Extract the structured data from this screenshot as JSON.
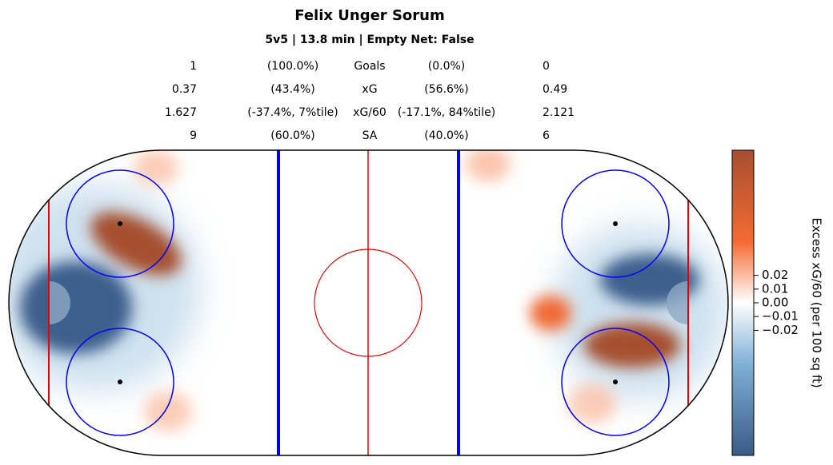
{
  "chart_data": {
    "type": "heatmap",
    "title": "Felix Unger Sorum",
    "subtitle": "5v5 | 13.8 min | Empty Net: False",
    "stats": [
      [
        "1",
        "(100.0%)",
        "Goals",
        "(0.0%)",
        "0"
      ],
      [
        "0.37",
        "(43.4%)",
        "xG",
        "(56.6%)",
        "0.49"
      ],
      [
        "1.627",
        "(-37.4%, 7%tile)",
        "xG/60",
        "(-17.1%, 84%tile)",
        "2.121"
      ],
      [
        "9",
        "(60.0%)",
        "SA",
        "(40.0%)",
        "6"
      ]
    ],
    "colorbar": {
      "label": "Excess xG/60 (per 100 sq ft)",
      "clim": [
        -0.111,
        0.111
      ],
      "ticks": [
        {
          "value": 0.02,
          "label": "0.02"
        },
        {
          "value": 0.01,
          "label": "0.01"
        },
        {
          "value": 0,
          "label": "0.00"
        },
        {
          "value": -0.01,
          "label": "−0.01"
        },
        {
          "value": -0.02,
          "label": "−0.02"
        }
      ]
    }
  }
}
